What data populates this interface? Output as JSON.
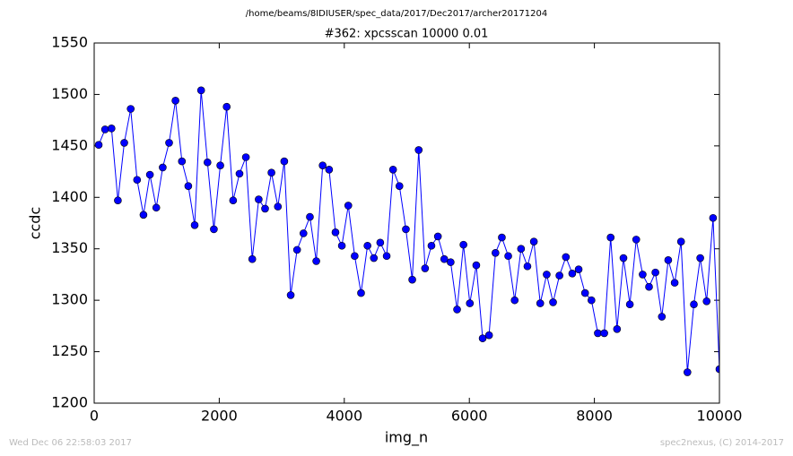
{
  "chart_data": {
    "type": "line",
    "title": "/home/beams/8IDIUSER/spec_data/2017/Dec2017/archer20171204",
    "subtitle": "#362: xpcsscan 10000 0.01",
    "xlabel": "img_n",
    "ylabel": "ccdc",
    "timestamp": "Wed Dec 06 22:58:03 2017",
    "credit": "spec2nexus, (C) 2014-2017",
    "xlim": [
      0,
      10000
    ],
    "xticks": [
      0,
      2000,
      4000,
      6000,
      8000,
      10000
    ],
    "ylim": [
      1200,
      1550
    ],
    "yticks": [
      1200,
      1250,
      1300,
      1350,
      1400,
      1450,
      1500,
      1550
    ],
    "grid": false,
    "x": [
      72,
      174,
      277,
      379,
      481,
      584,
      686,
      788,
      891,
      993,
      1096,
      1198,
      1300,
      1403,
      1505,
      1607,
      1710,
      1812,
      1914,
      2017,
      2119,
      2222,
      2324,
      2426,
      2528,
      2631,
      2733,
      2835,
      2938,
      3040,
      3143,
      3245,
      3347,
      3450,
      3552,
      3654,
      3757,
      3859,
      3961,
      4064,
      4166,
      4268,
      4371,
      4473,
      4575,
      4678,
      4780,
      4882,
      4985,
      5087,
      5190,
      5292,
      5394,
      5497,
      5599,
      5701,
      5804,
      5906,
      6008,
      6111,
      6213,
      6315,
      6418,
      6520,
      6622,
      6725,
      6827,
      6929,
      7032,
      7134,
      7237,
      7339,
      7441,
      7544,
      7646,
      7748,
      7851,
      7953,
      8055,
      8158,
      8260,
      8362,
      8465,
      8567,
      8669,
      8772,
      8874,
      8976,
      9079,
      9181,
      9284,
      9386,
      9488,
      9591,
      9693,
      9795,
      9898,
      10000
    ],
    "series": [
      {
        "color": "#0000ff",
        "values": [
          1451,
          1466,
          1467,
          1397,
          1453,
          1486,
          1417,
          1383,
          1422,
          1390,
          1429,
          1453,
          1494,
          1435,
          1411,
          1373,
          1504,
          1434,
          1369,
          1431,
          1488,
          1397,
          1423,
          1439,
          1340,
          1398,
          1389,
          1424,
          1391,
          1435,
          1305,
          1349,
          1365,
          1381,
          1338,
          1431,
          1427,
          1366,
          1353,
          1392,
          1343,
          1307,
          1353,
          1341,
          1356,
          1343,
          1427,
          1411,
          1369,
          1320,
          1446,
          1331,
          1353,
          1362,
          1340,
          1337,
          1291,
          1354,
          1297,
          1334,
          1263,
          1266,
          1346,
          1361,
          1343,
          1300,
          1350,
          1333,
          1357,
          1297,
          1325,
          1298,
          1324,
          1342,
          1326,
          1330,
          1307,
          1300,
          1268,
          1268,
          1361,
          1272,
          1341,
          1296,
          1359,
          1325,
          1313,
          1327,
          1284,
          1339,
          1317,
          1357,
          1230,
          1296,
          1341,
          1299,
          1380,
          1233
        ]
      }
    ]
  }
}
